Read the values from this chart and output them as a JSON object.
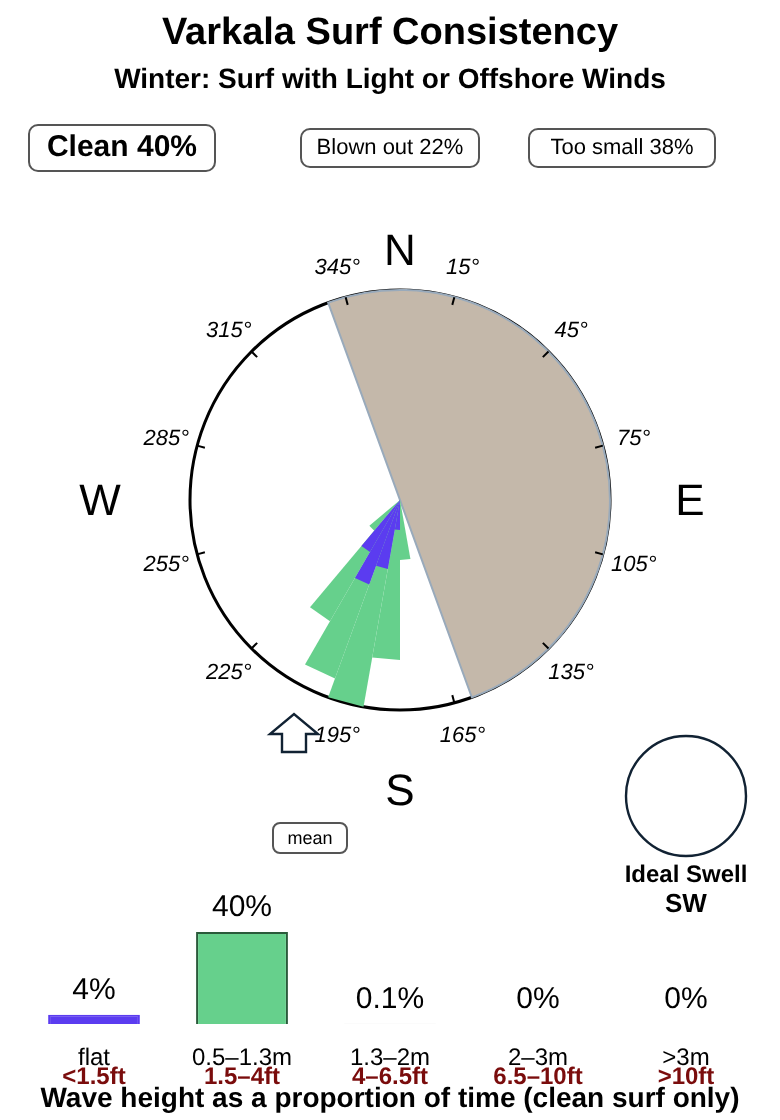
{
  "chart_data": [
    {
      "type": "other",
      "title": "Varkala Surf Consistency",
      "subtitle": "Winter: Surf with Light or Offshore Winds",
      "annotations": [
        "Clean 40%",
        "Blown out 22%",
        "Too small 38%",
        "N",
        "E",
        "S",
        "W",
        "15°",
        "45°",
        "75°",
        "105°",
        "135°",
        "165°",
        "195°",
        "225°",
        "255°",
        "285°",
        "315°",
        "345°",
        "mean",
        "Ideal Swell",
        "SW"
      ]
    },
    {
      "type": "bar",
      "categories": [
        "flat",
        "0.5–1.3m",
        "1.3–2m",
        "2–3m",
        ">3m"
      ],
      "values": [
        4,
        40,
        0.1,
        0,
        0
      ],
      "colors": [
        "#5b3cf0",
        "#66d08c",
        "#b8c0b8",
        "#b8c0b8",
        "#c8b0b0"
      ],
      "value_labels": [
        "4%",
        "40%",
        "0.1%",
        "0%",
        "0%"
      ],
      "annotations": [
        "<1.5ft",
        "1.5–4ft",
        "4–6.5ft",
        "6.5–10ft",
        ">10ft"
      ],
      "xlabel": "Wave height as a proportion of time (clean surf only)"
    }
  ]
}
